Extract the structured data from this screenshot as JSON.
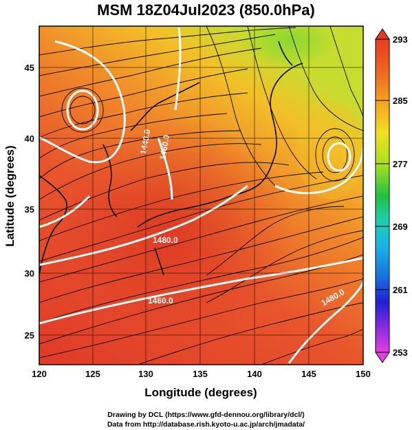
{
  "title": "MSM 18Z04Jul2023 (850.0hPa)",
  "axes": {
    "xlabel": "Longitude (degrees)",
    "ylabel": "Latitude  (degrees)",
    "xticks": [
      "120",
      "125",
      "130",
      "135",
      "140",
      "145",
      "150"
    ],
    "yticks": [
      "25",
      "30",
      "35",
      "40",
      "45"
    ],
    "xlim": [
      120,
      150
    ],
    "ylim": [
      22.5,
      47.6
    ]
  },
  "colorbar": {
    "ticks": [
      "293",
      "285",
      "277",
      "269",
      "261",
      "253"
    ],
    "range": [
      253,
      293
    ],
    "colors": [
      "#e040e0",
      "#8a2be2",
      "#2020d0",
      "#1a6fe0",
      "#19b5e6",
      "#1ad0b0",
      "#22c040",
      "#a8e020",
      "#f0e020",
      "#f5a020",
      "#f06020",
      "#e83a20"
    ]
  },
  "contour_labels": [
    "1460.0",
    "1460.0",
    "1440.0",
    "1480.0",
    "1480.0",
    "1460.0"
  ],
  "credits": {
    "line1": "Drawing by DCL (https://www.gfd-dennou.org/library/dcl/)",
    "line2": "Data from http://database.rish.kyoto-u.ac.jp/arch/jmadata/"
  },
  "colors": {
    "warm": "#e84a2e",
    "mid": "#f08a2a",
    "cool": "#c8d020",
    "contour": "#ffffff"
  }
}
